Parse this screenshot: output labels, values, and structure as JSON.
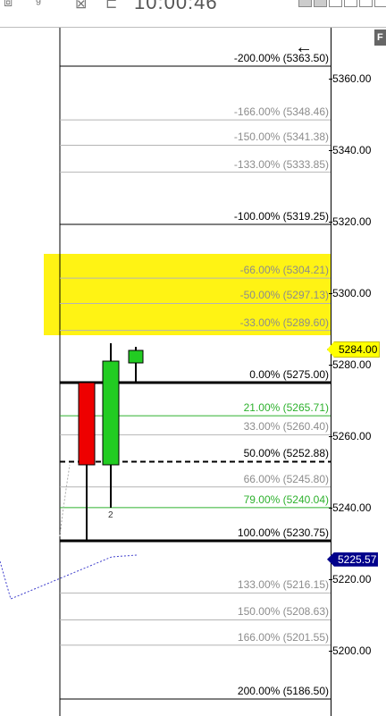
{
  "toolbar": {
    "time_text": "10:00:46",
    "icons": [
      "chart-type-icon",
      "indicator-icon",
      "close-box-icon",
      "layout-icon"
    ]
  },
  "colors": {
    "highlight": "#fff200",
    "fib_green": "#2db12d",
    "fib_grey": "#8c8c8c",
    "fib_black": "#000000",
    "candle_up": "#22cc22",
    "candle_down": "#ee0000",
    "price_tag_current": "#ffff00",
    "price_tag_other": "#00008b"
  },
  "y_axis": {
    "ticks": [
      "5360.00",
      "5340.00",
      "5320.00",
      "5300.00",
      "5280.00",
      "5260.00",
      "5240.00",
      "5220.00",
      "5200.00"
    ],
    "current_price": "5284.00",
    "other_price": "5225.57"
  },
  "buttons": {
    "back_icon": "←",
    "f_label": "F"
  },
  "fib_levels": [
    {
      "label": "-200.00% (5363.50)",
      "price": 5363.5,
      "style": "thin-black"
    },
    {
      "label": "-166.00% (5348.46)",
      "price": 5348.46,
      "style": "grey"
    },
    {
      "label": "-150.00% (5341.38)",
      "price": 5341.38,
      "style": "grey"
    },
    {
      "label": "-133.00% (5333.85)",
      "price": 5333.85,
      "style": "grey"
    },
    {
      "label": "-100.00% (5319.25)",
      "price": 5319.25,
      "style": "thin-black"
    },
    {
      "label": "-66.00% (5304.21)",
      "price": 5304.21,
      "style": "grey"
    },
    {
      "label": "-50.00% (5297.13)",
      "price": 5297.13,
      "style": "grey"
    },
    {
      "label": "-33.00% (5289.60)",
      "price": 5289.6,
      "style": "grey"
    },
    {
      "label": "0.00% (5275.00)",
      "price": 5275.0,
      "style": "thick-black"
    },
    {
      "label": "21.00% (5265.71)",
      "price": 5265.71,
      "style": "green"
    },
    {
      "label": "33.00% (5260.40)",
      "price": 5260.4,
      "style": "grey"
    },
    {
      "label": "50.00% (5252.88)",
      "price": 5252.88,
      "style": "dashed-black"
    },
    {
      "label": "66.00% (5245.80)",
      "price": 5245.8,
      "style": "grey"
    },
    {
      "label": "79.00% (5240.04)",
      "price": 5240.04,
      "style": "green"
    },
    {
      "label": "100.00% (5230.75)",
      "price": 5230.75,
      "style": "thick-black"
    },
    {
      "label": "133.00% (5216.15)",
      "price": 5216.15,
      "style": "grey"
    },
    {
      "label": "150.00% (5208.63)",
      "price": 5208.63,
      "style": "grey"
    },
    {
      "label": "166.00% (5201.55)",
      "price": 5201.55,
      "style": "grey"
    },
    {
      "label": "200.00% (5186.50)",
      "price": 5186.5,
      "style": "thin-black"
    }
  ],
  "candles": [
    {
      "open": 5275.0,
      "high": 5275.0,
      "low": 5230.75,
      "close": 5252.0,
      "direction": "down"
    },
    {
      "open": 5252.0,
      "high": 5286.0,
      "low": 5240.0,
      "close": 5281.0,
      "direction": "up"
    },
    {
      "open": 5280.5,
      "high": 5285.0,
      "low": 5275.0,
      "close": 5284.0,
      "direction": "up"
    }
  ],
  "bar_label": "2"
}
